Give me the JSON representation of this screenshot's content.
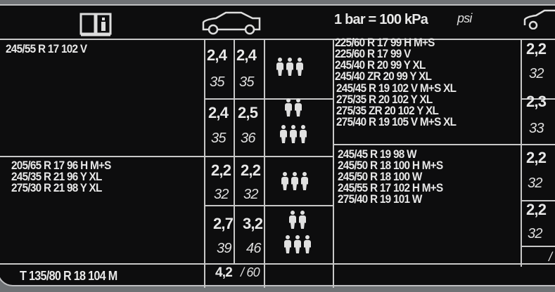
{
  "header": {
    "book_icon": "book-info-icon",
    "car_icon": "car-icon",
    "conversion": "1 bar = 100 kPa",
    "unit_psi": "psi"
  },
  "group1": {
    "tires": [
      "245/55 R 17 102 V"
    ],
    "load_normal": {
      "front_bar": "2,4",
      "rear_bar": "2,4",
      "front_psi": "35",
      "rear_psi": "35",
      "occupants": 3
    },
    "load_full": {
      "front_bar": "2,4",
      "rear_bar": "2,5",
      "front_psi": "35",
      "rear_psi": "36",
      "occupants": "2+3"
    }
  },
  "group2": {
    "tires": [
      "205/65 R 17 96 H M+S",
      "245/35 R 21 96 Y XL",
      "275/30 R 21 98 Y XL"
    ],
    "load_normal": {
      "front_bar": "2,2",
      "rear_bar": "2,2",
      "front_psi": "32",
      "rear_psi": "32",
      "occupants": 3
    },
    "load_full": {
      "front_bar": "2,7",
      "rear_bar": "3,2",
      "front_psi": "39",
      "rear_psi": "46",
      "occupants": "2+3"
    }
  },
  "spare": {
    "tire": "T 135/80 R 18 104 M",
    "bar": "4,2",
    "psi": "60"
  },
  "eco_group1": {
    "tires": [
      "225/60 R 17 99 H M+S",
      "225/60 R 17 99 V",
      "245/40 R 20 99 Y XL",
      "245/40 ZR 20 99 Y XL",
      "245/45 R 19 102 V M+S XL",
      "275/35 R 20 102 Y XL",
      "275/35 ZR 20 102 Y XL",
      "275/40 R 19 105 V M+S XL"
    ],
    "pressures": [
      {
        "bar": "2,2",
        "psi": "32"
      },
      {
        "bar": "2,3",
        "psi": "33"
      }
    ]
  },
  "eco_group2": {
    "tires": [
      "245/45 R 19 98 W",
      "245/50 R 18 100 H M+S",
      "245/50 R 18 100 W",
      "245/55 R 17 102 H M+S",
      "275/40 R 19 101 W"
    ],
    "pressures": [
      {
        "bar": "2,2",
        "psi": "32"
      },
      {
        "bar": "2,2",
        "psi": "32"
      }
    ]
  },
  "eco_spare_sep": "/"
}
